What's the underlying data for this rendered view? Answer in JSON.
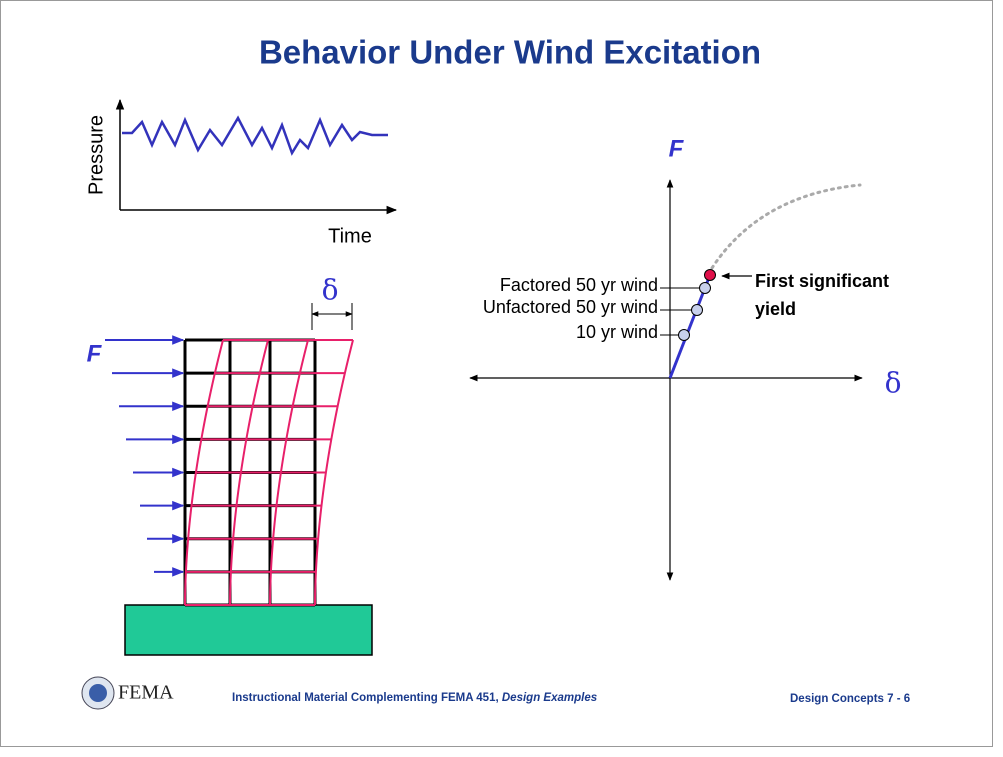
{
  "title": "Behavior Under Wind Excitation",
  "pressure_plot": {
    "y_label": "Pressure",
    "x_label": "Time"
  },
  "building": {
    "force_label": "F",
    "drift_label": "δ"
  },
  "force_plot": {
    "y_label": "F",
    "x_label": "δ",
    "levels": [
      "Factored 50 yr wind",
      "Unfactored 50 yr wind",
      "10 yr wind"
    ],
    "yield_note": [
      "First significant",
      "yield"
    ]
  },
  "footer": {
    "logo": "FEMA",
    "source": "Instructional Material Complementing FEMA 451, ",
    "source_italic": "Design Examples",
    "page": "Design Concepts 7 - 6"
  }
}
